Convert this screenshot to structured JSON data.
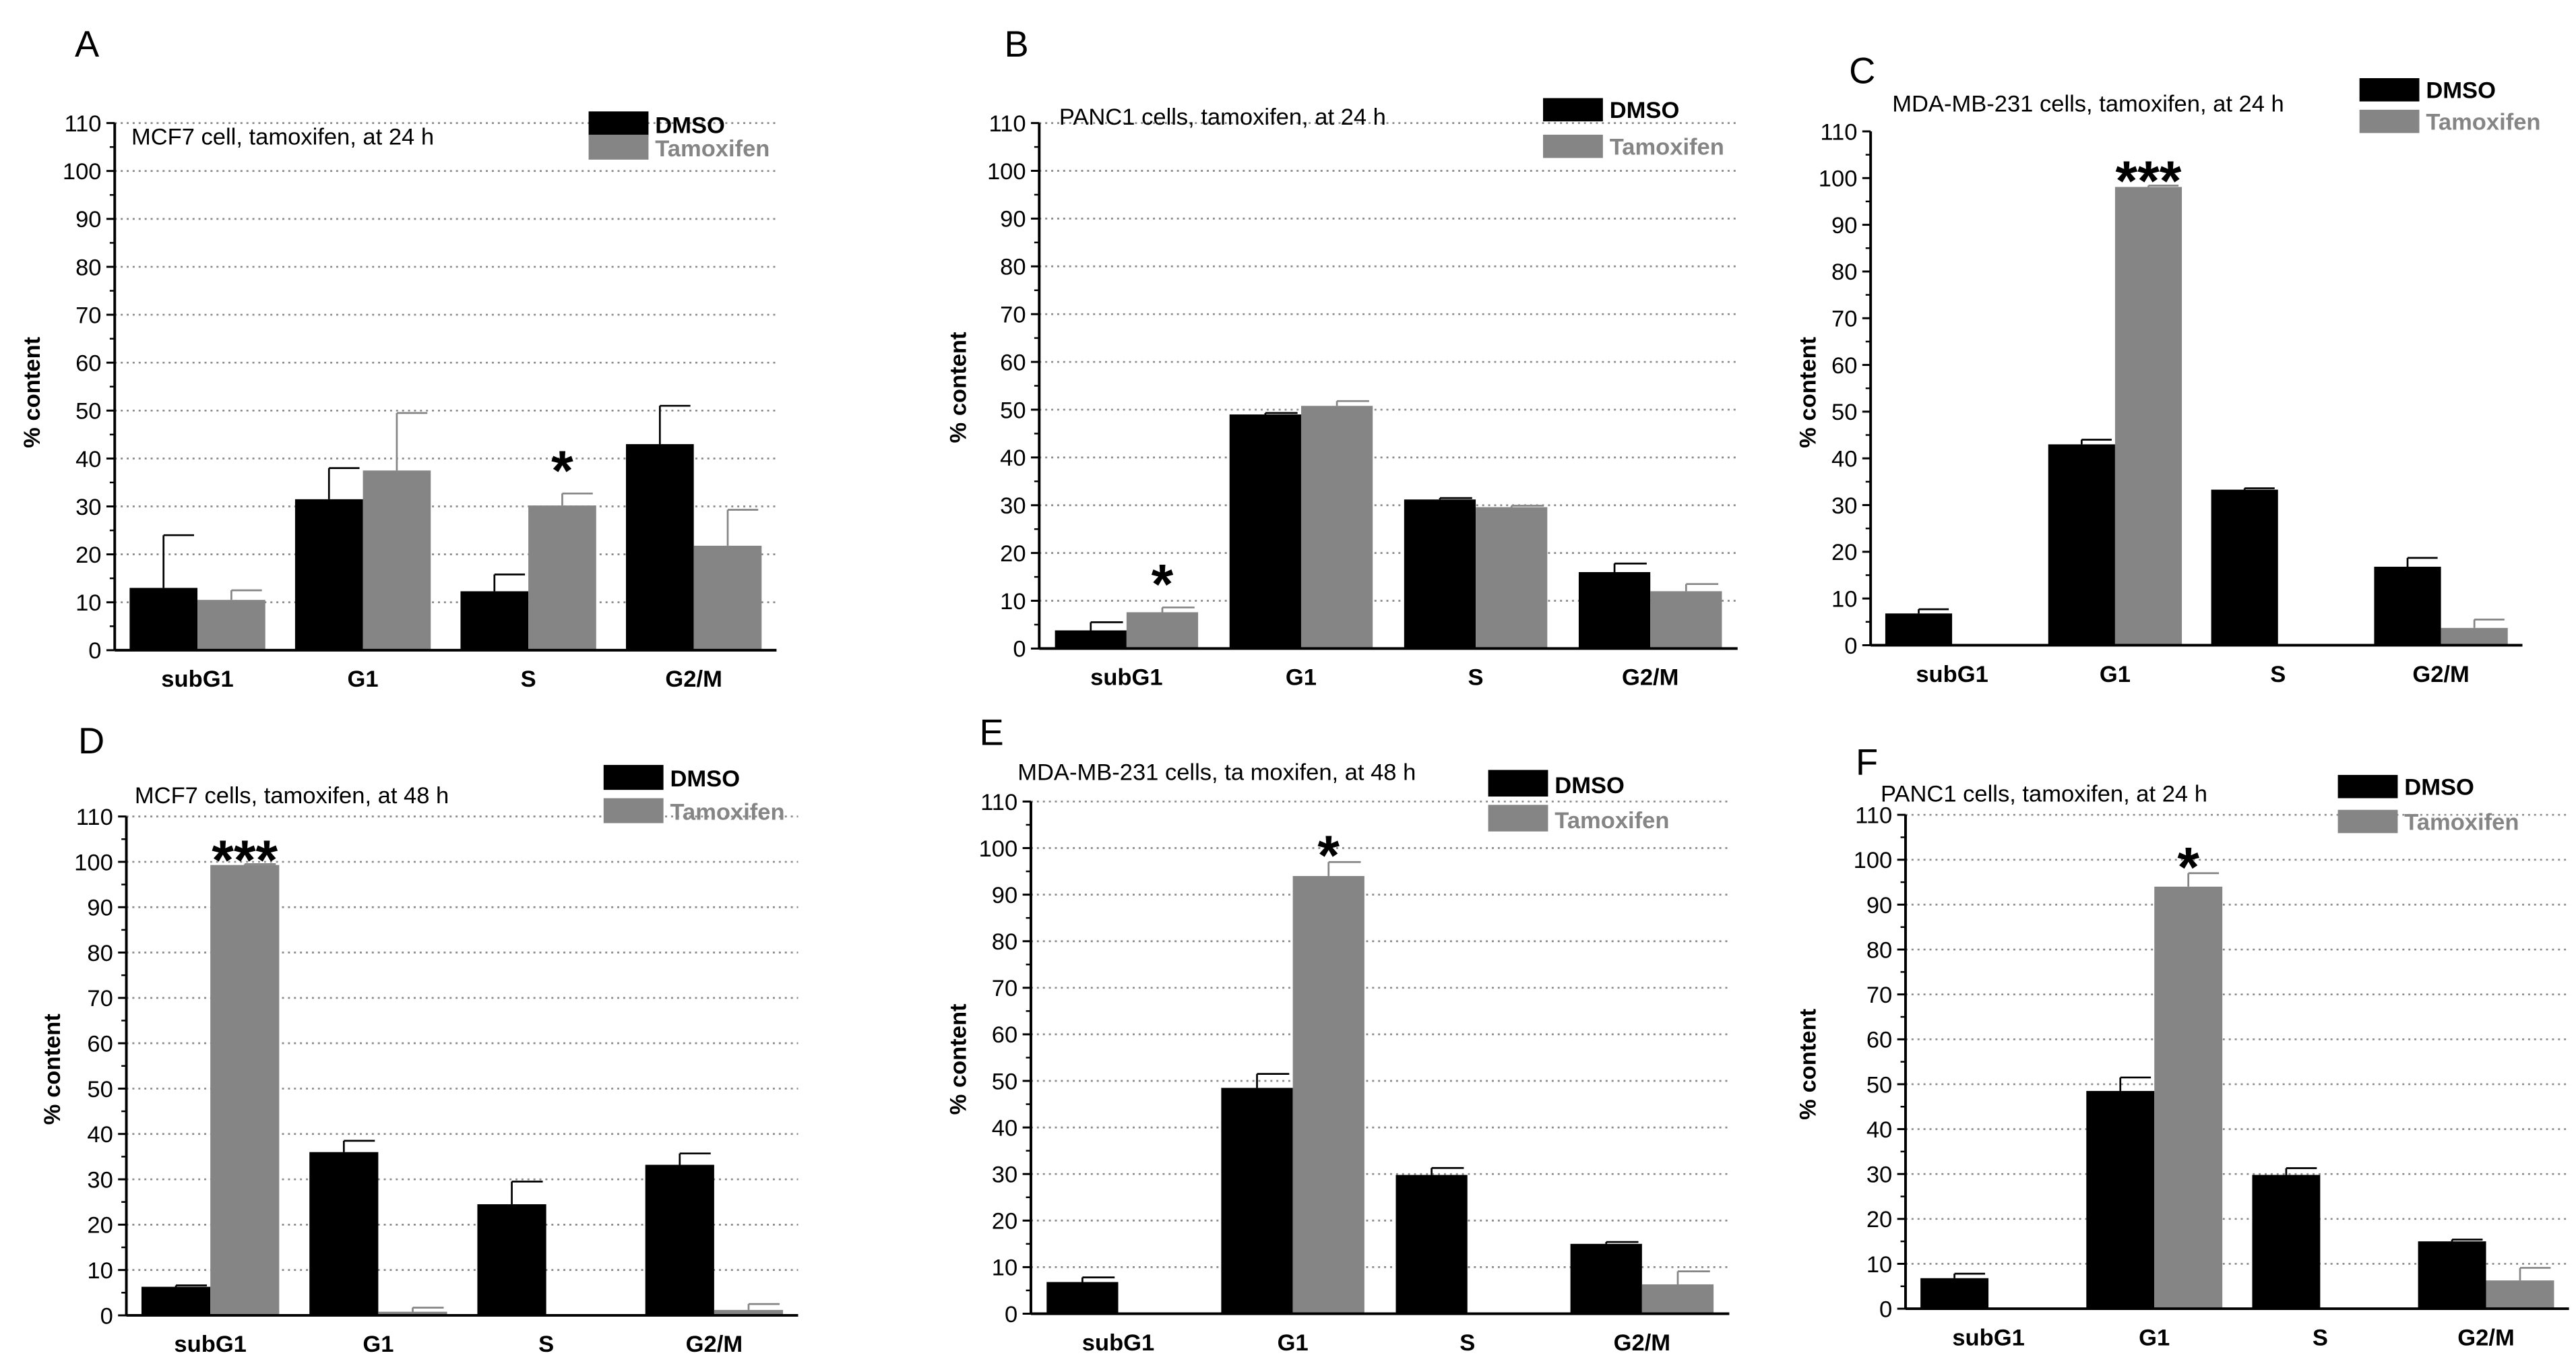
{
  "figure": {
    "y_label": "% content",
    "y_ticks": [
      "0",
      "10",
      "20",
      "30",
      "40",
      "50",
      "60",
      "70",
      "80",
      "90",
      "100",
      "110"
    ],
    "categories": [
      "subG1",
      "G1",
      "S",
      "G2/M"
    ],
    "legend": [
      "DMSO",
      "Tamoxifen"
    ]
  },
  "chart_data": [
    {
      "panel": "A",
      "type": "bar",
      "title": "MCF7 cell, tamoxifen, at 24 h",
      "categories": [
        "subG1",
        "G1",
        "S",
        "G2/M"
      ],
      "xlabel": "",
      "ylabel": "% content",
      "ylim": [
        0,
        110
      ],
      "grid": true,
      "legend_position": "top-right",
      "series": [
        {
          "name": "DMSO",
          "color": "#000000",
          "values": [
            13,
            31.5,
            12.3,
            43
          ],
          "errors": [
            11,
            6.5,
            3.5,
            8
          ]
        },
        {
          "name": "Tamoxifen",
          "color": "#858585",
          "values": [
            10.5,
            37.5,
            30.2,
            21.8
          ],
          "errors": [
            2,
            12,
            2.5,
            7.5
          ]
        }
      ],
      "annotations": [
        {
          "text": "*",
          "category": "S",
          "value": 39
        }
      ]
    },
    {
      "panel": "B",
      "type": "bar",
      "title": "PANC1 cells, tamoxifen, at 24 h",
      "categories": [
        "subG1",
        "G1",
        "S",
        "G2/M"
      ],
      "xlabel": "",
      "ylabel": "% content",
      "ylim": [
        0,
        110
      ],
      "grid": true,
      "legend_position": "top-right",
      "series": [
        {
          "name": "DMSO",
          "color": "#000000",
          "values": [
            3.8,
            49,
            31.2,
            16
          ],
          "errors": [
            1.7,
            0.3,
            0.3,
            1.8
          ]
        },
        {
          "name": "Tamoxifen",
          "color": "#858585",
          "values": [
            7.6,
            50.8,
            29.6,
            12
          ],
          "errors": [
            1,
            1,
            0.3,
            1.5
          ]
        }
      ],
      "annotations": [
        {
          "text": "*",
          "category": "subG1",
          "value": 15
        }
      ]
    },
    {
      "panel": "C",
      "type": "bar",
      "title": "MDA-MB-231 cells, tamoxifen, at 24 h",
      "categories": [
        "subG1",
        "G1",
        "S",
        "G2/M"
      ],
      "xlabel": "",
      "ylabel": "% content",
      "ylim": [
        0,
        110
      ],
      "grid": false,
      "legend_position": "top-right",
      "series": [
        {
          "name": "DMSO",
          "color": "#000000",
          "values": [
            6.8,
            43,
            33.3,
            16.8
          ],
          "errors": [
            0.9,
            1,
            0.3,
            1.9
          ]
        },
        {
          "name": "Tamoxifen",
          "color": "#858585",
          "values": [
            0,
            98.1,
            0,
            3.7
          ],
          "errors": [
            0,
            0.3,
            0,
            1.8
          ]
        }
      ],
      "annotations": [
        {
          "text": "***",
          "category": "G1",
          "value": 101
        }
      ]
    },
    {
      "panel": "D",
      "type": "bar",
      "title": "MCF7 cells, tamoxifen, at 48 h",
      "categories": [
        "subG1",
        "G1",
        "S",
        "G2/M"
      ],
      "xlabel": "",
      "ylabel": "% content",
      "ylim": [
        0,
        110
      ],
      "grid": true,
      "legend_position": "top-right",
      "series": [
        {
          "name": "DMSO",
          "color": "#000000",
          "values": [
            6.3,
            36,
            24.5,
            33.2
          ],
          "errors": [
            0.3,
            2.5,
            5,
            2.5
          ]
        },
        {
          "name": "Tamoxifen",
          "color": "#858585",
          "values": [
            99.3,
            0.8,
            0,
            1.2
          ],
          "errors": [
            0.2,
            0.9,
            0,
            1.3
          ]
        }
      ],
      "annotations": [
        {
          "text": "***",
          "category": "subG1",
          "value": 102
        }
      ]
    },
    {
      "panel": "E",
      "type": "bar",
      "title": "MDA-MB-231 cells, ta moxifen, at 48 h",
      "categories": [
        "subG1",
        "G1",
        "S",
        "G2/M"
      ],
      "xlabel": "",
      "ylabel": "% content",
      "ylim": [
        0,
        110
      ],
      "grid": true,
      "legend_position": "top-right",
      "series": [
        {
          "name": "DMSO",
          "color": "#000000",
          "values": [
            6.8,
            48.5,
            29.8,
            15
          ],
          "errors": [
            1,
            3,
            1.5,
            0.4
          ]
        },
        {
          "name": "Tamoxifen",
          "color": "#858585",
          "values": [
            0,
            94,
            0,
            6.3
          ],
          "errors": [
            0,
            3,
            0,
            2.8
          ]
        }
      ],
      "annotations": [
        {
          "text": "*",
          "category": "G1",
          "value": 100
        }
      ]
    },
    {
      "panel": "F",
      "type": "bar",
      "title": "PANC1 cells, tamoxifen, at 24 h",
      "categories": [
        "subG1",
        "G1",
        "S",
        "G2/M"
      ],
      "xlabel": "",
      "ylabel": "% content",
      "ylim": [
        0,
        110
      ],
      "grid": true,
      "legend_position": "top-right",
      "series": [
        {
          "name": "DMSO",
          "color": "#000000",
          "values": [
            6.8,
            48.5,
            29.8,
            15
          ],
          "errors": [
            1,
            3,
            1.5,
            0.4
          ]
        },
        {
          "name": "Tamoxifen",
          "color": "#858585",
          "values": [
            0,
            94,
            0,
            6.3
          ],
          "errors": [
            0,
            3,
            0,
            2.8
          ]
        }
      ],
      "annotations": [
        {
          "text": "*",
          "category": "G1",
          "value": 100
        }
      ]
    }
  ]
}
